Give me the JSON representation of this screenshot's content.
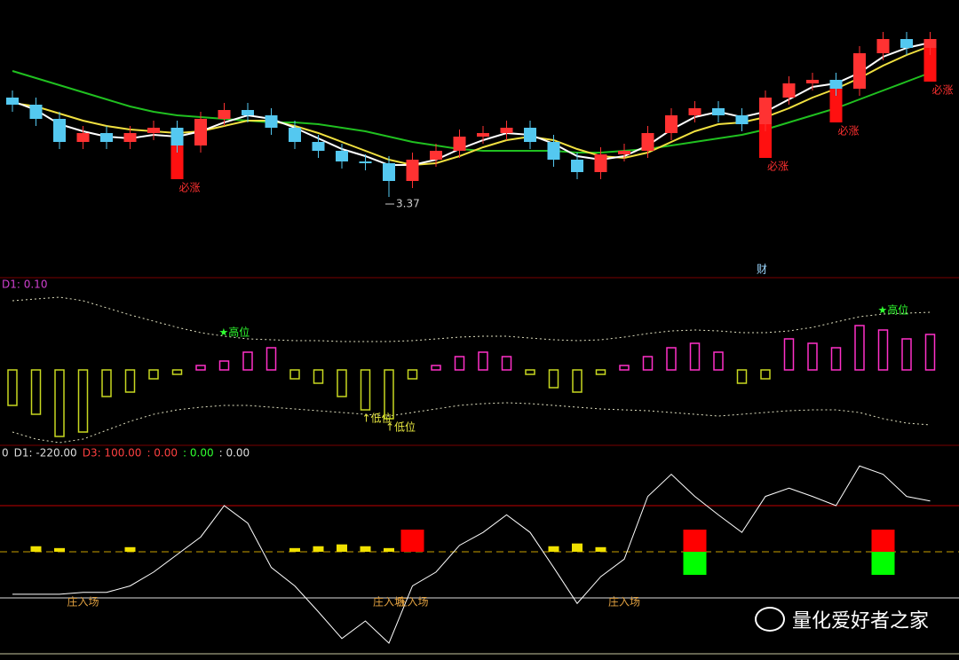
{
  "chart_data": [
    {
      "type": "candlestick",
      "ylim": [
        2.93,
        4.48
      ],
      "up_color": "#ff3232",
      "down_color": "#54c8f0",
      "open": [
        3.93,
        3.89,
        3.81,
        3.68,
        3.73,
        3.68,
        3.73,
        3.76,
        3.66,
        3.81,
        3.86,
        3.83,
        3.76,
        3.68,
        3.63,
        3.57,
        3.56,
        3.46,
        3.58,
        3.63,
        3.71,
        3.73,
        3.76,
        3.68,
        3.58,
        3.51,
        3.61,
        3.63,
        3.73,
        3.83,
        3.87,
        3.83,
        3.78,
        3.93,
        4.01,
        4.03,
        3.98,
        4.18,
        4.26,
        4.21
      ],
      "close": [
        3.89,
        3.81,
        3.68,
        3.73,
        3.68,
        3.73,
        3.76,
        3.66,
        3.81,
        3.86,
        3.83,
        3.76,
        3.68,
        3.63,
        3.57,
        3.56,
        3.46,
        3.58,
        3.63,
        3.71,
        3.73,
        3.76,
        3.68,
        3.58,
        3.51,
        3.61,
        3.63,
        3.73,
        3.83,
        3.87,
        3.83,
        3.78,
        3.93,
        4.01,
        4.03,
        3.98,
        4.18,
        4.26,
        4.21,
        4.26
      ],
      "high": [
        3.97,
        3.93,
        3.85,
        3.77,
        3.77,
        3.77,
        3.8,
        3.8,
        3.85,
        3.9,
        3.9,
        3.87,
        3.8,
        3.72,
        3.67,
        3.61,
        3.6,
        3.62,
        3.67,
        3.75,
        3.77,
        3.8,
        3.8,
        3.72,
        3.62,
        3.65,
        3.67,
        3.77,
        3.87,
        3.91,
        3.91,
        3.87,
        3.97,
        4.05,
        4.07,
        4.07,
        4.22,
        4.3,
        4.3,
        4.3
      ],
      "low": [
        3.85,
        3.77,
        3.64,
        3.64,
        3.64,
        3.64,
        3.69,
        3.62,
        3.62,
        3.77,
        3.79,
        3.72,
        3.64,
        3.59,
        3.53,
        3.52,
        3.37,
        3.42,
        3.54,
        3.59,
        3.67,
        3.69,
        3.64,
        3.54,
        3.47,
        3.47,
        3.57,
        3.59,
        3.69,
        3.79,
        3.79,
        3.74,
        3.74,
        3.89,
        3.97,
        3.94,
        3.94,
        4.14,
        4.17,
        4.17
      ],
      "series": [
        {
          "color": "#20c020",
          "values": [
            4.08,
            4.04,
            4.0,
            3.96,
            3.92,
            3.88,
            3.85,
            3.83,
            3.82,
            3.81,
            3.8,
            3.79,
            3.79,
            3.78,
            3.76,
            3.74,
            3.71,
            3.68,
            3.66,
            3.64,
            3.63,
            3.63,
            3.63,
            3.63,
            3.62,
            3.62,
            3.63,
            3.64,
            3.66,
            3.68,
            3.7,
            3.72,
            3.75,
            3.79,
            3.83,
            3.87,
            3.92,
            3.97,
            4.02,
            4.07
          ]
        },
        {
          "color": "#f0e040",
          "values": [
            3.9,
            3.88,
            3.84,
            3.8,
            3.77,
            3.75,
            3.74,
            3.73,
            3.74,
            3.77,
            3.8,
            3.8,
            3.77,
            3.73,
            3.68,
            3.63,
            3.58,
            3.55,
            3.56,
            3.6,
            3.65,
            3.69,
            3.71,
            3.69,
            3.64,
            3.6,
            3.59,
            3.62,
            3.68,
            3.74,
            3.78,
            3.79,
            3.82,
            3.87,
            3.93,
            3.98,
            4.04,
            4.11,
            4.17,
            4.22
          ]
        },
        {
          "color": "#ffffff",
          "values": [
            3.91,
            3.86,
            3.78,
            3.74,
            3.71,
            3.7,
            3.72,
            3.71,
            3.74,
            3.79,
            3.83,
            3.81,
            3.76,
            3.7,
            3.64,
            3.6,
            3.55,
            3.55,
            3.58,
            3.64,
            3.69,
            3.73,
            3.72,
            3.67,
            3.6,
            3.58,
            3.6,
            3.66,
            3.75,
            3.82,
            3.85,
            3.82,
            3.85,
            3.92,
            3.99,
            4.01,
            4.07,
            4.16,
            4.21,
            4.24
          ]
        }
      ],
      "signal_labels": [
        null,
        null,
        null,
        null,
        null,
        null,
        null,
        "必涨",
        null,
        null,
        null,
        null,
        null,
        null,
        null,
        null,
        null,
        null,
        null,
        null,
        null,
        null,
        null,
        null,
        null,
        null,
        null,
        null,
        null,
        null,
        null,
        null,
        "必涨",
        null,
        null,
        "必涨",
        null,
        null,
        null,
        "必涨"
      ],
      "low_labels": [
        null,
        null,
        null,
        null,
        null,
        null,
        null,
        null,
        null,
        null,
        null,
        null,
        null,
        null,
        null,
        null,
        "3.37",
        null,
        null,
        null,
        null,
        null,
        null,
        null,
        null,
        null,
        null,
        null,
        null,
        null,
        null,
        null,
        null,
        null,
        null,
        null,
        null,
        null,
        null,
        null
      ],
      "markers": [
        null,
        null,
        null,
        null,
        null,
        null,
        null,
        null,
        null,
        null,
        null,
        null,
        null,
        null,
        null,
        null,
        null,
        null,
        null,
        null,
        null,
        null,
        null,
        null,
        null,
        null,
        null,
        null,
        null,
        null,
        null,
        null,
        "财",
        null,
        null,
        null,
        null,
        null,
        null,
        null
      ]
    },
    {
      "type": "bar",
      "ylim": [
        -85,
        104
      ],
      "header": "D1: 0.10",
      "up_color": "#ff30c8",
      "down_color": "#c8d820",
      "band_color": "#e0e0c0",
      "values": [
        -40,
        -50,
        -75,
        -70,
        -30,
        -25,
        -10,
        -5,
        5,
        10,
        20,
        25,
        -10,
        -15,
        -30,
        -45,
        -55,
        -10,
        5,
        15,
        20,
        15,
        -5,
        -20,
        -25,
        -5,
        5,
        15,
        25,
        30,
        20,
        -15,
        -10,
        35,
        30,
        25,
        50,
        45,
        35,
        40
      ],
      "upper_band": [
        78,
        80,
        82,
        78,
        70,
        62,
        55,
        48,
        42,
        38,
        35,
        34,
        33,
        33,
        32,
        32,
        32,
        33,
        35,
        37,
        38,
        38,
        36,
        34,
        33,
        34,
        37,
        41,
        44,
        45,
        44,
        42,
        42,
        44,
        48,
        54,
        60,
        63,
        64,
        65
      ],
      "lower_band": [
        -70,
        -78,
        -82,
        -78,
        -68,
        -58,
        -50,
        -45,
        -42,
        -40,
        -40,
        -42,
        -44,
        -46,
        -48,
        -50,
        -52,
        -48,
        -44,
        -40,
        -38,
        -37,
        -38,
        -40,
        -42,
        -44,
        -45,
        -46,
        -48,
        -50,
        -52,
        -50,
        -48,
        -46,
        -45,
        -45,
        -48,
        -55,
        -60,
        -62
      ],
      "top_labels": [
        null,
        null,
        null,
        null,
        null,
        null,
        null,
        null,
        null,
        "★高位",
        null,
        null,
        null,
        null,
        null,
        null,
        null,
        null,
        null,
        null,
        null,
        null,
        null,
        null,
        null,
        null,
        null,
        null,
        null,
        null,
        null,
        null,
        null,
        null,
        null,
        null,
        null,
        "★高位",
        null,
        null
      ],
      "bottom_labels": [
        null,
        null,
        null,
        null,
        null,
        null,
        null,
        null,
        null,
        null,
        null,
        null,
        null,
        null,
        null,
        "↑低位",
        "↑低位",
        null,
        null,
        null,
        null,
        null,
        null,
        null,
        null,
        null,
        null,
        null,
        null,
        null,
        null,
        null,
        null,
        null,
        null,
        null,
        null,
        null,
        null,
        null
      ]
    },
    {
      "type": "line",
      "ylim": [
        -58.65,
        162.5
      ],
      "header": [
        {
          "text": "0",
          "color": "#dddddd"
        },
        {
          "text": "D1: -220.00",
          "color": "#dddddd"
        },
        {
          "text": "D3: 100.00",
          "color": "#ff4040"
        },
        {
          "text": ": 0.00",
          "color": "#ff4040"
        },
        {
          "text": ": 0.00",
          "color": "#30ff30"
        },
        {
          "text": ": 0.00",
          "color": "#dddddd"
        }
      ],
      "ref_lines": [
        {
          "value": 100,
          "color": "#c00000"
        },
        {
          "value": 0,
          "color": "#dddddd"
        }
      ],
      "bar_base": 50,
      "bar_base_color": "#c8a000",
      "series": [
        {
          "color": "#ffffff",
          "values": [
            4,
            4,
            4,
            6,
            6,
            13,
            28,
            47,
            66,
            100,
            81,
            33,
            13,
            -15,
            -44,
            -25,
            -49,
            13,
            28,
            57,
            71,
            90,
            71,
            33,
            -6,
            23,
            42,
            110,
            134,
            110,
            90,
            71,
            110,
            119,
            110,
            100,
            143,
            134,
            110,
            105
          ]
        }
      ],
      "yellow_bars": [
        null,
        6,
        4,
        null,
        null,
        5,
        null,
        null,
        null,
        null,
        null,
        null,
        4,
        6,
        8,
        6,
        4,
        null,
        null,
        null,
        null,
        null,
        null,
        6,
        9,
        5,
        null,
        null,
        null,
        null,
        null,
        null,
        null,
        null,
        null,
        null,
        null,
        null,
        null,
        null
      ],
      "red_bars": [
        null,
        null,
        null,
        null,
        null,
        null,
        null,
        null,
        null,
        null,
        null,
        null,
        null,
        null,
        null,
        null,
        null,
        24,
        null,
        null,
        null,
        null,
        null,
        null,
        null,
        null,
        null,
        null,
        null,
        24,
        null,
        null,
        null,
        null,
        null,
        null,
        null,
        24,
        null,
        null
      ],
      "green_bars": [
        null,
        null,
        null,
        null,
        null,
        null,
        null,
        null,
        null,
        null,
        null,
        null,
        null,
        null,
        null,
        null,
        null,
        null,
        null,
        null,
        null,
        null,
        null,
        null,
        null,
        null,
        null,
        null,
        null,
        -25,
        null,
        null,
        null,
        null,
        null,
        null,
        null,
        -25,
        null,
        null
      ],
      "entry_labels": [
        null,
        null,
        null,
        "庄入场",
        null,
        null,
        null,
        null,
        null,
        null,
        null,
        null,
        null,
        null,
        null,
        null,
        "庄入场",
        "庄入场",
        null,
        null,
        null,
        null,
        null,
        null,
        null,
        null,
        "庄入场",
        null,
        null,
        null,
        null,
        null,
        null,
        null,
        null,
        null,
        null,
        null,
        null,
        null
      ]
    }
  ],
  "watermark": "量化爱好者之家"
}
